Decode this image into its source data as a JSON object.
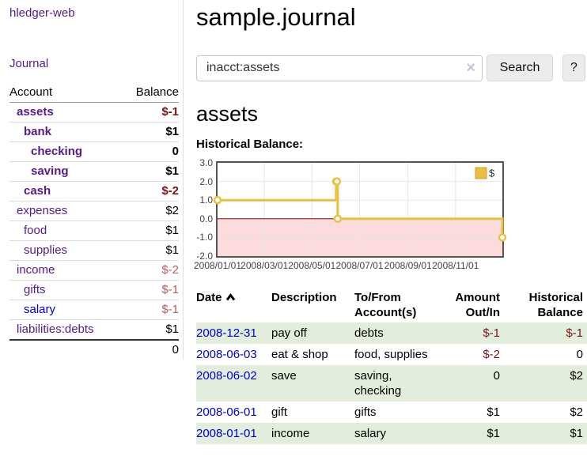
{
  "brand": "hledger-web",
  "nav": {
    "journal": "Journal"
  },
  "sidebar": {
    "col_account": "Account",
    "col_balance": "Balance",
    "accounts": [
      {
        "name": "assets",
        "balance": "$-1"
      },
      {
        "name": "bank",
        "balance": "$1"
      },
      {
        "name": "checking",
        "balance": "0"
      },
      {
        "name": "saving",
        "balance": "$1"
      },
      {
        "name": "cash",
        "balance": "$-2"
      },
      {
        "name": "expenses",
        "balance": "$2"
      },
      {
        "name": "food",
        "balance": "$1"
      },
      {
        "name": "supplies",
        "balance": "$1"
      },
      {
        "name": "income",
        "balance": "$-2"
      },
      {
        "name": "gifts",
        "balance": "$-1"
      },
      {
        "name": "salary",
        "balance": "$-1"
      },
      {
        "name": "liabilities:debts",
        "balance": "$1"
      }
    ],
    "total": "0"
  },
  "main": {
    "title": "sample.journal",
    "search": {
      "value": "inacct:assets",
      "clear": "×",
      "search_button": "Search",
      "help_button": "?"
    },
    "heading": "assets",
    "chart_title": "Historical Balance:"
  },
  "chart_data": {
    "type": "line",
    "step": true,
    "title": "Historical Balance",
    "series": [
      {
        "name": "$",
        "color": "#e9c042",
        "points": [
          [
            "2008-01-01",
            1
          ],
          [
            "2008-06-01",
            2
          ],
          [
            "2008-06-02",
            2
          ],
          [
            "2008-06-03",
            0
          ],
          [
            "2008-12-31",
            -1
          ]
        ]
      }
    ],
    "x_ticks": [
      "2008/01/01",
      "2008/03/01",
      "2008/05/01",
      "2008/07/01",
      "2008/09/01",
      "2008/11/01"
    ],
    "y_ticks": [
      "3.0",
      "2.0",
      "1.0",
      "0.0",
      "-1.0",
      "-2.0"
    ],
    "xlim": [
      "2008-01-01",
      "2008-12-31"
    ],
    "ylim": [
      -2,
      3
    ],
    "grid": true,
    "legend": {
      "label": "$",
      "position": "top-right"
    },
    "colors": {
      "negative_fill": "#fbdbdb",
      "zero_line": "#990000",
      "gridline": "#e6e6e6",
      "plot_border": "#545454"
    }
  },
  "register": {
    "headers": {
      "date": "Date",
      "description": "Description",
      "accounts": "To/From Account(s)",
      "amount": "Amount Out/In",
      "balance": "Historical Balance"
    },
    "rows": [
      {
        "date": "2008-12-31",
        "description": "pay off",
        "accounts": "debts",
        "amount": "$-1",
        "balance": "$-1"
      },
      {
        "date": "2008-06-03",
        "description": "eat & shop",
        "accounts": "food, supplies",
        "amount": "$-2",
        "balance": "0"
      },
      {
        "date": "2008-06-02",
        "description": "save",
        "accounts": "saving, checking",
        "amount": "0",
        "balance": "$2"
      },
      {
        "date": "2008-06-01",
        "description": "gift",
        "accounts": "gifts",
        "amount": "$1",
        "balance": "$2"
      },
      {
        "date": "2008-01-01",
        "description": "income",
        "accounts": "salary",
        "amount": "$1",
        "balance": "$1"
      }
    ]
  }
}
